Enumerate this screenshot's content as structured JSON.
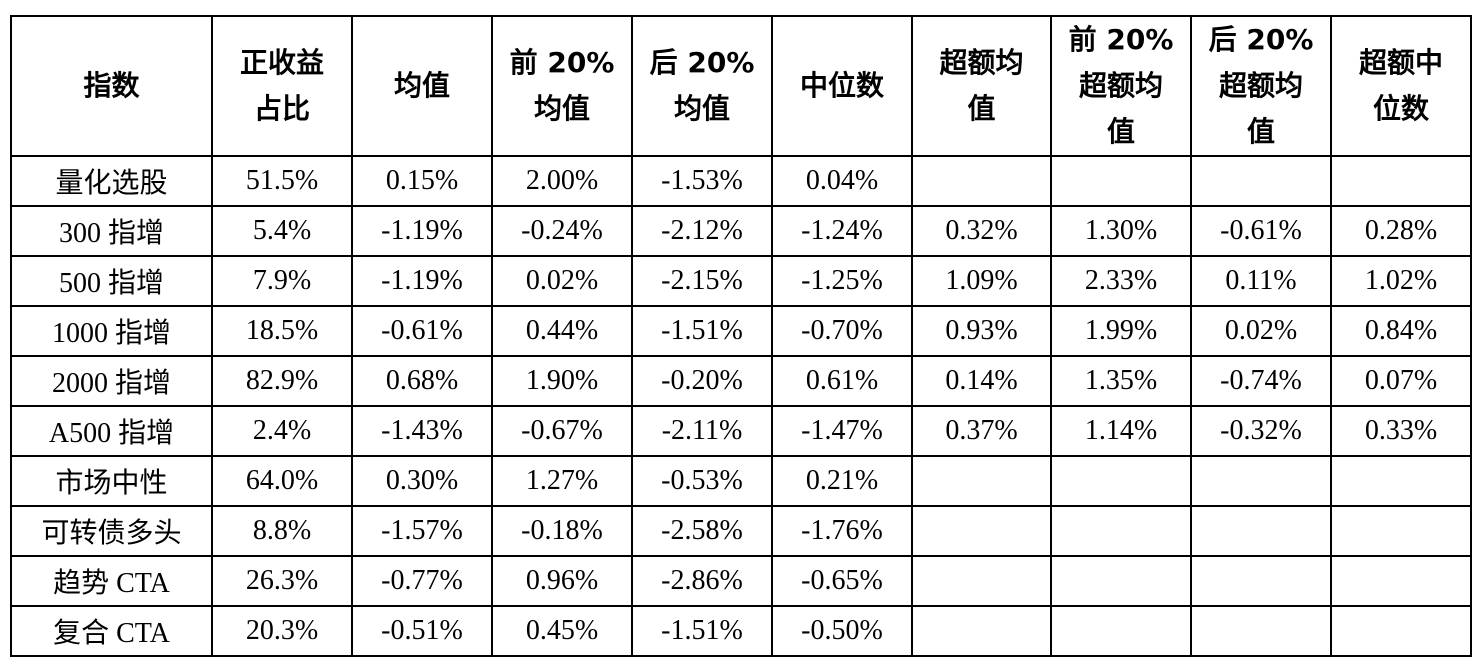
{
  "table": {
    "header": [
      [
        "指数"
      ],
      [
        "正收益",
        "占比"
      ],
      [
        "均值"
      ],
      [
        "前 20%",
        "均值"
      ],
      [
        "后 20%",
        "均值"
      ],
      [
        "中位数"
      ],
      [
        "超额均",
        "值"
      ],
      [
        "前 20%",
        "超额均",
        "值"
      ],
      [
        "后 20%",
        "超额均",
        "值"
      ],
      [
        "超额中",
        "位数"
      ]
    ],
    "rows": [
      [
        "量化选股",
        "51.5%",
        "0.15%",
        "2.00%",
        "-1.53%",
        "0.04%"
      ],
      [
        "300 指增",
        "5.4%",
        "-1.19%",
        "-0.24%",
        "-2.12%",
        "-1.24%",
        "0.32%",
        "1.30%",
        "-0.61%",
        "0.28%"
      ],
      [
        "500 指增",
        "7.9%",
        "-1.19%",
        "0.02%",
        "-2.15%",
        "-1.25%",
        "1.09%",
        "2.33%",
        "0.11%",
        "1.02%"
      ],
      [
        "1000 指增",
        "18.5%",
        "-0.61%",
        "0.44%",
        "-1.51%",
        "-0.70%",
        "0.93%",
        "1.99%",
        "0.02%",
        "0.84%"
      ],
      [
        "2000 指增",
        "82.9%",
        "0.68%",
        "1.90%",
        "-0.20%",
        "0.61%",
        "0.14%",
        "1.35%",
        "-0.74%",
        "0.07%"
      ],
      [
        "A500 指增",
        "2.4%",
        "-1.43%",
        "-0.67%",
        "-2.11%",
        "-1.47%",
        "0.37%",
        "1.14%",
        "-0.32%",
        "0.33%"
      ],
      [
        "市场中性",
        "64.0%",
        "0.30%",
        "1.27%",
        "-0.53%",
        "0.21%"
      ],
      [
        "可转债多头",
        "8.8%",
        "-1.57%",
        "-0.18%",
        "-2.58%",
        "-1.76%"
      ],
      [
        "趋势 CTA",
        "26.3%",
        "-0.77%",
        "0.96%",
        "-2.86%",
        "-0.65%"
      ],
      [
        "复合 CTA",
        "20.3%",
        "-0.51%",
        "0.45%",
        "-1.51%",
        "-0.50%"
      ]
    ]
  }
}
